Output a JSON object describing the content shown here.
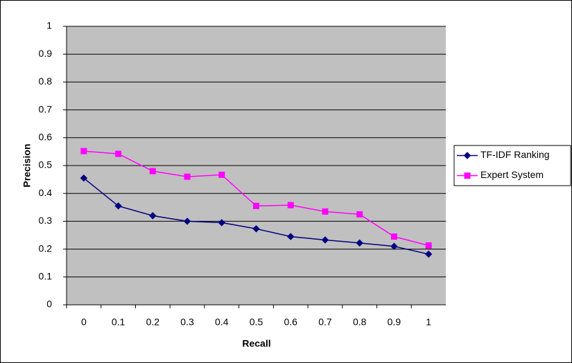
{
  "chart_data": {
    "type": "line",
    "x_label": "Recall",
    "y_label": "Precision",
    "categories": [
      "0",
      "0.1",
      "0.2",
      "0.3",
      "0.4",
      "0.5",
      "0.6",
      "0.7",
      "0.8",
      "0.9",
      "1"
    ],
    "series": [
      {
        "name": "TF-IDF Ranking",
        "color": "#000080",
        "marker": "diamond",
        "values": [
          0.455,
          0.355,
          0.32,
          0.3,
          0.295,
          0.273,
          0.245,
          0.233,
          0.222,
          0.21,
          0.182
        ]
      },
      {
        "name": "Expert System",
        "color": "#ff00ff",
        "marker": "square",
        "values": [
          0.552,
          0.542,
          0.48,
          0.46,
          0.467,
          0.355,
          0.358,
          0.335,
          0.325,
          0.245,
          0.213
        ]
      }
    ],
    "ylim": [
      0,
      1
    ],
    "yticks": [
      0,
      0.1,
      0.2,
      0.3,
      0.4,
      0.5,
      0.6,
      0.7,
      0.8,
      0.9,
      1
    ],
    "grid": true,
    "legend": "right"
  }
}
